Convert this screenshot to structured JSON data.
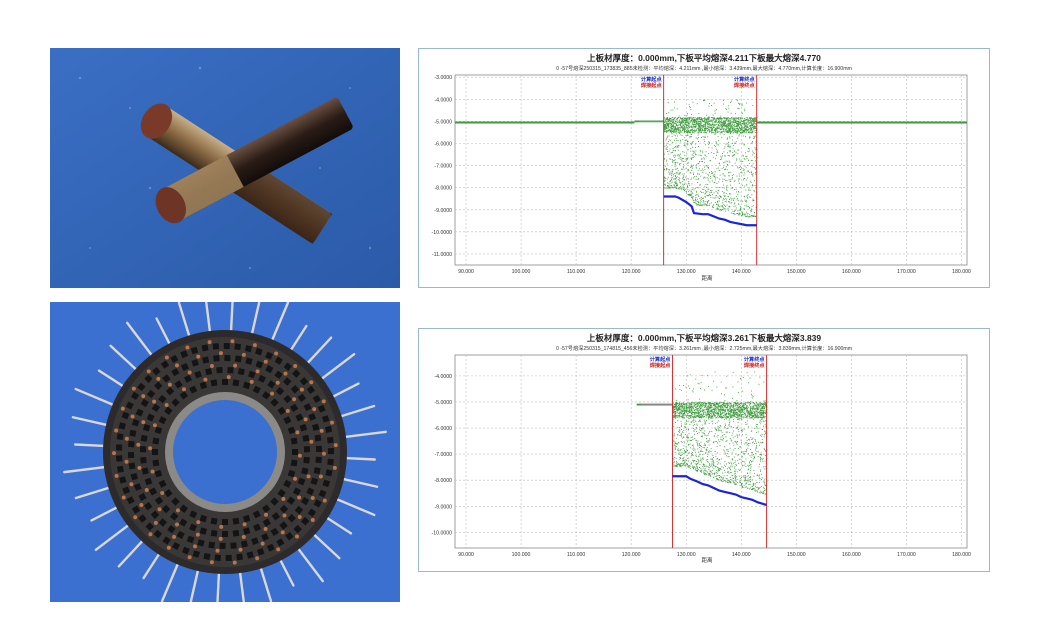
{
  "photos": [
    {
      "label": "welded-bars-photo"
    },
    {
      "label": "ring-plate-photo"
    }
  ],
  "chart_data": [
    {
      "type": "scatter",
      "title": "上板材厚度：0.000mm,下板平均熔深4.211下板最大熔深4.770",
      "subtitle": "0    -57号熔深250315_173835_885未检测：平均熔深：4.211mm ,最小熔深：3.439mm,最大熔深：4.770mm,计算长度：16.900mm",
      "xlabel": "距离",
      "ylabel": "",
      "xlim": [
        88,
        181
      ],
      "ylim": [
        -11.5,
        -2.9
      ],
      "xticks": [
        "90.000",
        "100.000",
        "110.000",
        "120.000",
        "130.000",
        "140.000",
        "150.000",
        "160.000",
        "170.000",
        "180.000"
      ],
      "yticks": [
        "-3.0000",
        "-4.0000",
        "-5.0000",
        "-6.0000",
        "-7.0000",
        "-8.0000",
        "-9.0000",
        "-10.0000",
        "-11.0000"
      ],
      "grid": true,
      "markers": [
        {
          "x": 125.9,
          "top_label": "计算起点",
          "bottom_label": "焊接起点"
        },
        {
          "x": 142.8,
          "top_label": "计算终点",
          "bottom_label": "焊接终点"
        }
      ],
      "surface_line": {
        "y": -5.05,
        "x_ranges": [
          [
            88,
            120.6
          ],
          [
            142.8,
            181
          ]
        ]
      },
      "pre_segment": {
        "x": [
          120.6,
          125.9
        ],
        "y": -5.0
      },
      "depth_series": {
        "x": [
          125.9,
          128.0,
          128.6,
          130.0,
          131.0,
          131.4,
          133.0,
          134.0,
          135.0,
          136.0,
          137.0,
          138.0,
          139.0,
          140.0,
          141.0,
          142.8
        ],
        "y": [
          -8.4,
          -8.4,
          -8.45,
          -8.65,
          -8.85,
          -9.15,
          -9.2,
          -9.2,
          -9.3,
          -9.4,
          -9.45,
          -9.55,
          -9.6,
          -9.65,
          -9.7,
          -9.7
        ]
      },
      "scatter_band": {
        "x_range": [
          125.9,
          142.8
        ],
        "top": -4.0,
        "bottom": -9.3,
        "dense_top": [
          -4.8,
          -5.5
        ]
      }
    },
    {
      "type": "scatter",
      "title": "上板材厚度：0.000mm,下板平均熔深3.261下板最大熔深3.839",
      "subtitle": "0    -57号熔深250315_174815_456未检测：平均熔深：3.261mm ,最小熔深：2.725mm,最大熔深：3.839mm,计算长度：16.900mm",
      "xlabel": "距离",
      "ylabel": "",
      "xlim": [
        88,
        181
      ],
      "ylim": [
        -10.6,
        -3.2
      ],
      "xticks": [
        "90.000",
        "100.000",
        "110.000",
        "120.000",
        "130.000",
        "140.000",
        "150.000",
        "160.000",
        "170.000",
        "180.000"
      ],
      "yticks": [
        "-4.0000",
        "-5.0000",
        "-6.0000",
        "-7.0000",
        "-8.0000",
        "-9.0000",
        "-10.0000"
      ],
      "grid": true,
      "markers": [
        {
          "x": 127.5,
          "top_label": "计算起点",
          "bottom_label": "焊接起点"
        },
        {
          "x": 144.6,
          "top_label": "计算终点",
          "bottom_label": "焊接终点"
        }
      ],
      "surface_line": null,
      "pre_segment": {
        "x": [
          121.0,
          127.5
        ],
        "y": -5.1
      },
      "depth_series": {
        "x": [
          127.5,
          130.0,
          130.8,
          132.0,
          133.0,
          134.0,
          135.0,
          136.0,
          137.0,
          138.0,
          139.0,
          140.0,
          141.0,
          142.0,
          143.0,
          144.6
        ],
        "y": [
          -7.85,
          -7.85,
          -7.95,
          -8.05,
          -8.15,
          -8.2,
          -8.3,
          -8.4,
          -8.45,
          -8.5,
          -8.55,
          -8.65,
          -8.7,
          -8.75,
          -8.85,
          -8.95
        ]
      },
      "scatter_band": {
        "x_range": [
          127.5,
          144.6
        ],
        "top": -3.8,
        "bottom": -8.9,
        "dense_top": [
          -5.0,
          -5.6
        ]
      }
    }
  ]
}
